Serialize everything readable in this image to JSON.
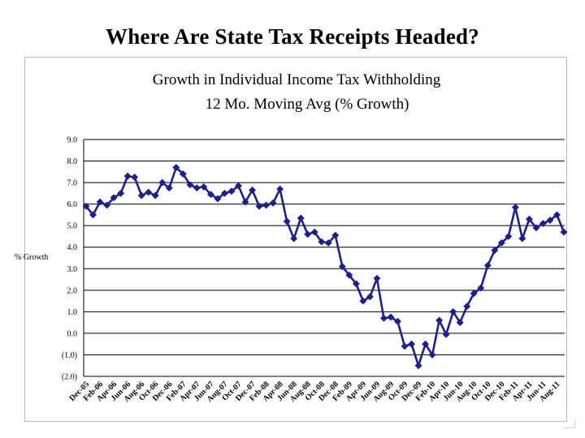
{
  "slide_title": "Where Are State Tax Receipts Headed?",
  "chart_data": {
    "type": "line",
    "title": "Growth in Individual Income Tax Withholding",
    "subtitle": "12 Mo. Moving Avg (% Growth)",
    "xlabel": "",
    "ylabel": "% Growth",
    "ylim": [
      -2.0,
      9.0
    ],
    "y_ticks": [
      9.0,
      8.0,
      7.0,
      6.0,
      5.0,
      4.0,
      3.0,
      2.0,
      1.0,
      0.0,
      -1.0,
      -2.0
    ],
    "y_tick_labels": [
      "9.0",
      "8.0",
      "7.0",
      "6.0",
      "5.0",
      "4.0",
      "3.0",
      "2.0",
      "1.0",
      "0.0",
      "(1.0)",
      "(2.0)"
    ],
    "x_tick_labels": [
      "Dec-05",
      "Feb-06",
      "Apr-06",
      "Jun-06",
      "Aug-06",
      "Oct-06",
      "Dec-06",
      "Feb-07",
      "Apr-07",
      "Jun-07",
      "Aug-07",
      "Oct-07",
      "Dec-07",
      "Feb-08",
      "Apr-08",
      "Jun-08",
      "Aug-08",
      "Oct-08",
      "Dec-08",
      "Feb-09",
      "Apr-09",
      "Jun-09",
      "Aug-09",
      "Oct-09",
      "Dec-09",
      "Feb-10",
      "Apr-10",
      "Jun-10",
      "Aug-10",
      "Oct-10",
      "Dec-10",
      "Feb-11",
      "Apr-11",
      "Jun-11",
      "Aug-11"
    ],
    "grid": true,
    "marker": "diamond",
    "series": [
      {
        "name": "% Growth",
        "color": "#1f1f8a",
        "values": [
          5.9,
          5.5,
          6.1,
          5.95,
          6.3,
          6.5,
          7.3,
          7.25,
          6.4,
          6.55,
          6.4,
          7.0,
          6.75,
          7.7,
          7.4,
          6.9,
          6.75,
          6.8,
          6.45,
          6.25,
          6.5,
          6.6,
          6.85,
          6.1,
          6.65,
          5.9,
          5.95,
          6.05,
          6.7,
          5.2,
          4.4,
          5.35,
          4.6,
          4.7,
          4.25,
          4.2,
          4.55,
          3.1,
          2.7,
          2.3,
          1.5,
          1.7,
          2.55,
          0.7,
          0.75,
          0.55,
          -0.6,
          -0.5,
          -1.5,
          -0.5,
          -1.0,
          0.6,
          -0.05,
          1.0,
          0.5,
          1.25,
          1.85,
          2.1,
          3.15,
          3.85,
          4.2,
          4.5,
          5.85,
          4.4,
          5.3,
          4.9,
          5.1,
          5.25,
          5.5,
          4.7
        ]
      }
    ]
  }
}
